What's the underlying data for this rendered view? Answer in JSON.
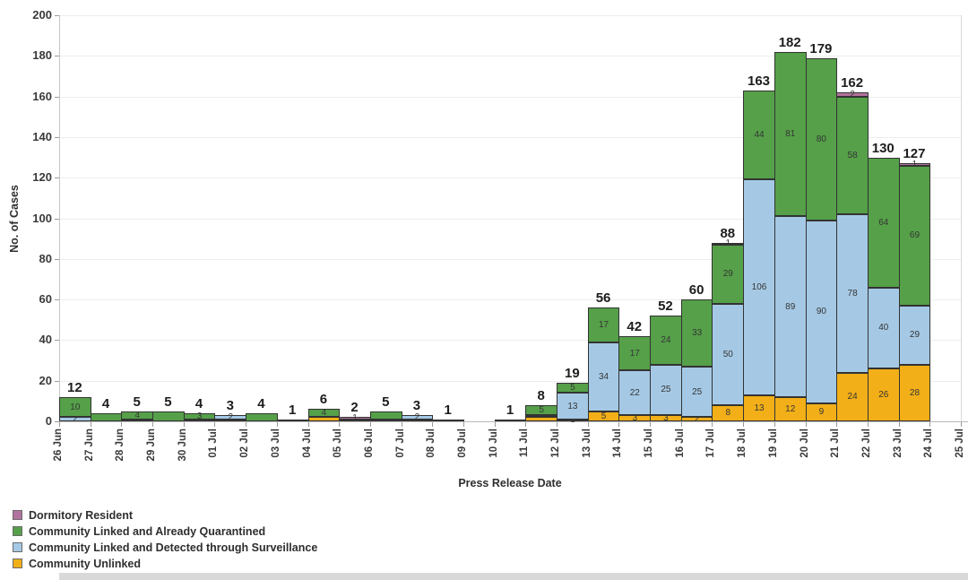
{
  "chart_data": {
    "type": "bar",
    "stacked": true,
    "title": "",
    "xlabel": "Press Release Date",
    "ylabel": "No. of Cases",
    "ylim": [
      0,
      200
    ],
    "ytick_step": 20,
    "yticks": [
      0,
      20,
      40,
      60,
      80,
      100,
      120,
      140,
      160,
      180,
      200
    ],
    "grid": true,
    "legend_position": "bottom-left",
    "x_tick_labels": [
      "26 Jun",
      "27 Jun",
      "28 Jun",
      "29 Jun",
      "30 Jun",
      "01 Jul",
      "02 Jul",
      "03 Jul",
      "04 Jul",
      "05 Jul",
      "06 Jul",
      "07 Jul",
      "08 Jul",
      "09 Jul",
      "10 Jul",
      "11 Jul",
      "12 Jul",
      "13 Jul",
      "14 Jul",
      "15 Jul",
      "16 Jul",
      "17 Jul",
      "18 Jul",
      "19 Jul",
      "20 Jul",
      "21 Jul",
      "22 Jul",
      "23 Jul",
      "24 Jul",
      "25 Jul"
    ],
    "series_keys_bottom_to_top": [
      "unlinked",
      "surveillance",
      "quarantined",
      "dormitory"
    ],
    "legend": [
      {
        "key": "dormitory",
        "label": "Dormitory Resident",
        "color": "#b2739e"
      },
      {
        "key": "quarantined",
        "label": "Community Linked and Already Quarantined",
        "color": "#55a049"
      },
      {
        "key": "surveillance",
        "label": "Community Linked and Detected through Surveillance",
        "color": "#a5c9e5"
      },
      {
        "key": "unlinked",
        "label": "Community Unlinked",
        "color": "#f2af17"
      }
    ],
    "bars": [
      {
        "slot": 0,
        "between": [
          "26 Jun",
          "27 Jun"
        ],
        "total": 12,
        "segments": [
          {
            "key": "surveillance",
            "value": 2,
            "show_label": true
          },
          {
            "key": "quarantined",
            "value": 10,
            "show_label": true
          }
        ]
      },
      {
        "slot": 1,
        "between": [
          "27 Jun",
          "28 Jun"
        ],
        "total": 4,
        "segments": [
          {
            "key": "quarantined",
            "value": 4,
            "show_label": false
          }
        ]
      },
      {
        "slot": 2,
        "between": [
          "28 Jun",
          "29 Jun"
        ],
        "total": 5,
        "segments": [
          {
            "key": "surveillance",
            "value": 1,
            "show_label": false
          },
          {
            "key": "quarantined",
            "value": 4,
            "show_label": true
          }
        ]
      },
      {
        "slot": 3,
        "between": [
          "29 Jun",
          "30 Jun"
        ],
        "total": 5,
        "segments": [
          {
            "key": "quarantined",
            "value": 5,
            "show_label": false
          }
        ]
      },
      {
        "slot": 4,
        "between": [
          "30 Jun",
          "01 Jul"
        ],
        "total": 4,
        "segments": [
          {
            "key": "surveillance",
            "value": 1,
            "show_label": false
          },
          {
            "key": "quarantined",
            "value": 3,
            "show_label": true
          }
        ]
      },
      {
        "slot": 5,
        "between": [
          "01 Jul",
          "02 Jul"
        ],
        "total": 3,
        "segments": [
          {
            "key": "unlinked",
            "value": 1,
            "show_label": false
          },
          {
            "key": "surveillance",
            "value": 2,
            "show_label": true
          }
        ]
      },
      {
        "slot": 6,
        "between": [
          "02 Jul",
          "03 Jul"
        ],
        "total": 4,
        "segments": [
          {
            "key": "quarantined",
            "value": 4,
            "show_label": false
          }
        ]
      },
      {
        "slot": 7,
        "between": [
          "03 Jul",
          "04 Jul"
        ],
        "total": 1,
        "segments": [
          {
            "key": "unlinked",
            "value": 1,
            "show_label": false
          }
        ]
      },
      {
        "slot": 8,
        "between": [
          "04 Jul",
          "05 Jul"
        ],
        "total": 6,
        "segments": [
          {
            "key": "unlinked",
            "value": 2,
            "show_label": false
          },
          {
            "key": "quarantined",
            "value": 4,
            "show_label": true
          }
        ]
      },
      {
        "slot": 9,
        "between": [
          "05 Jul",
          "06 Jul"
        ],
        "total": 2,
        "segments": [
          {
            "key": "unlinked",
            "value": 1,
            "show_label": false
          },
          {
            "key": "dormitory",
            "value": 1,
            "show_label": true
          }
        ]
      },
      {
        "slot": 10,
        "between": [
          "06 Jul",
          "07 Jul"
        ],
        "total": 5,
        "segments": [
          {
            "key": "surveillance",
            "value": 1,
            "show_label": false
          },
          {
            "key": "quarantined",
            "value": 4,
            "show_label": false
          }
        ]
      },
      {
        "slot": 11,
        "between": [
          "07 Jul",
          "08 Jul"
        ],
        "total": 3,
        "segments": [
          {
            "key": "unlinked",
            "value": 1,
            "show_label": false
          },
          {
            "key": "surveillance",
            "value": 2,
            "show_label": true
          }
        ]
      },
      {
        "slot": 12,
        "between": [
          "08 Jul",
          "09 Jul"
        ],
        "total": 1,
        "segments": [
          {
            "key": "unlinked",
            "value": 1,
            "show_label": false
          }
        ]
      },
      {
        "slot": 14,
        "between": [
          "10 Jul",
          "11 Jul"
        ],
        "total": 1,
        "segments": [
          {
            "key": "unlinked",
            "value": 1,
            "show_label": false
          }
        ]
      },
      {
        "slot": 15,
        "between": [
          "11 Jul",
          "12 Jul"
        ],
        "total": 8,
        "segments": [
          {
            "key": "unlinked",
            "value": 2,
            "show_label": false
          },
          {
            "key": "surveillance",
            "value": 1,
            "show_label": false
          },
          {
            "key": "quarantined",
            "value": 5,
            "show_label": true
          }
        ]
      },
      {
        "slot": 16,
        "between": [
          "12 Jul",
          "13 Jul"
        ],
        "total": 19,
        "segments": [
          {
            "key": "unlinked",
            "value": 1,
            "show_label": true
          },
          {
            "key": "surveillance",
            "value": 13,
            "show_label": true
          },
          {
            "key": "quarantined",
            "value": 5,
            "show_label": true
          }
        ]
      },
      {
        "slot": 17,
        "between": [
          "13 Jul",
          "14 Jul"
        ],
        "total": 56,
        "segments": [
          {
            "key": "unlinked",
            "value": 5,
            "show_label": true
          },
          {
            "key": "surveillance",
            "value": 34,
            "show_label": true
          },
          {
            "key": "quarantined",
            "value": 17,
            "show_label": true
          }
        ]
      },
      {
        "slot": 18,
        "between": [
          "14 Jul",
          "15 Jul"
        ],
        "total": 42,
        "segments": [
          {
            "key": "unlinked",
            "value": 3,
            "show_label": true
          },
          {
            "key": "surveillance",
            "value": 22,
            "show_label": true
          },
          {
            "key": "quarantined",
            "value": 17,
            "show_label": true
          }
        ]
      },
      {
        "slot": 19,
        "between": [
          "15 Jul",
          "16 Jul"
        ],
        "total": 52,
        "segments": [
          {
            "key": "unlinked",
            "value": 3,
            "show_label": true
          },
          {
            "key": "surveillance",
            "value": 25,
            "show_label": true
          },
          {
            "key": "quarantined",
            "value": 24,
            "show_label": true
          }
        ]
      },
      {
        "slot": 20,
        "between": [
          "16 Jul",
          "17 Jul"
        ],
        "total": 60,
        "segments": [
          {
            "key": "unlinked",
            "value": 2,
            "show_label": true
          },
          {
            "key": "surveillance",
            "value": 25,
            "show_label": true
          },
          {
            "key": "quarantined",
            "value": 33,
            "show_label": true
          }
        ]
      },
      {
        "slot": 21,
        "between": [
          "17 Jul",
          "18 Jul"
        ],
        "total": 88,
        "segments": [
          {
            "key": "unlinked",
            "value": 8,
            "show_label": true
          },
          {
            "key": "surveillance",
            "value": 50,
            "show_label": true
          },
          {
            "key": "quarantined",
            "value": 29,
            "show_label": true
          },
          {
            "key": "dormitory",
            "value": 1,
            "show_label": true
          }
        ]
      },
      {
        "slot": 22,
        "between": [
          "18 Jul",
          "19 Jul"
        ],
        "total": 163,
        "segments": [
          {
            "key": "unlinked",
            "value": 13,
            "show_label": true
          },
          {
            "key": "surveillance",
            "value": 106,
            "show_label": true
          },
          {
            "key": "quarantined",
            "value": 44,
            "show_label": true
          }
        ]
      },
      {
        "slot": 23,
        "between": [
          "19 Jul",
          "20 Jul"
        ],
        "total": 182,
        "segments": [
          {
            "key": "unlinked",
            "value": 12,
            "show_label": true
          },
          {
            "key": "surveillance",
            "value": 89,
            "show_label": true
          },
          {
            "key": "quarantined",
            "value": 81,
            "show_label": true
          }
        ]
      },
      {
        "slot": 24,
        "between": [
          "20 Jul",
          "21 Jul"
        ],
        "total": 179,
        "segments": [
          {
            "key": "unlinked",
            "value": 9,
            "show_label": true
          },
          {
            "key": "surveillance",
            "value": 90,
            "show_label": true
          },
          {
            "key": "quarantined",
            "value": 80,
            "show_label": true
          }
        ]
      },
      {
        "slot": 25,
        "between": [
          "21 Jul",
          "22 Jul"
        ],
        "total": 162,
        "segments": [
          {
            "key": "unlinked",
            "value": 24,
            "show_label": true
          },
          {
            "key": "surveillance",
            "value": 78,
            "show_label": true
          },
          {
            "key": "quarantined",
            "value": 58,
            "show_label": true
          },
          {
            "key": "dormitory",
            "value": 2,
            "show_label": true
          }
        ]
      },
      {
        "slot": 26,
        "between": [
          "22 Jul",
          "23 Jul"
        ],
        "total": 130,
        "segments": [
          {
            "key": "unlinked",
            "value": 26,
            "show_label": true
          },
          {
            "key": "surveillance",
            "value": 40,
            "show_label": true
          },
          {
            "key": "quarantined",
            "value": 64,
            "show_label": true
          }
        ]
      },
      {
        "slot": 27,
        "between": [
          "23 Jul",
          "24 Jul"
        ],
        "total": 127,
        "segments": [
          {
            "key": "unlinked",
            "value": 28,
            "show_label": true
          },
          {
            "key": "surveillance",
            "value": 29,
            "show_label": true
          },
          {
            "key": "quarantined",
            "value": 69,
            "show_label": true
          },
          {
            "key": "dormitory",
            "value": 1,
            "show_label": true
          }
        ]
      }
    ]
  }
}
